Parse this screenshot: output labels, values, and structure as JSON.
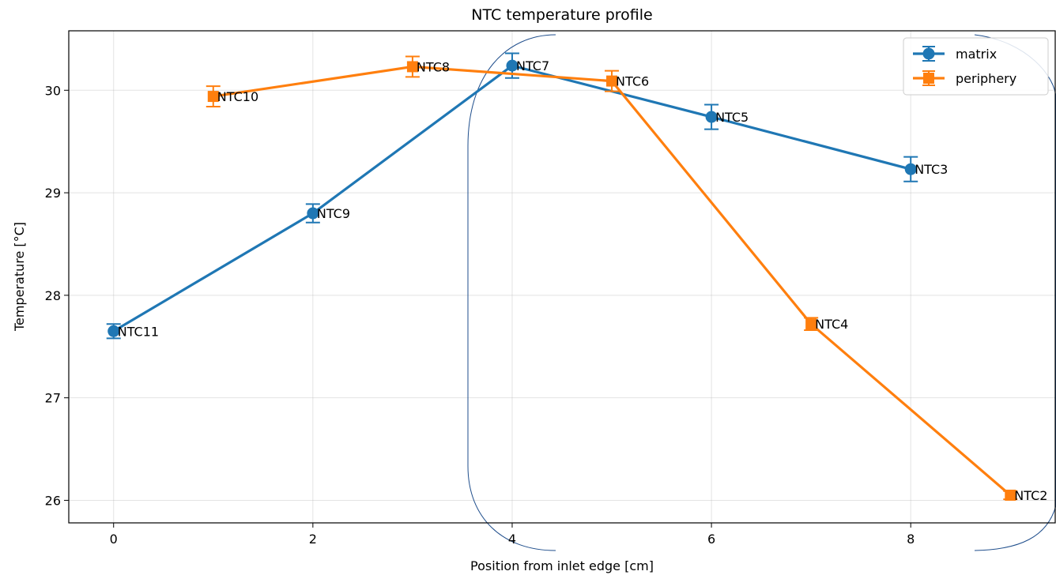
{
  "chart_data": {
    "type": "line",
    "title": "NTC temperature profile",
    "xlabel": "Position from inlet edge [cm]",
    "ylabel": "Temperature [°C]",
    "xlim": [
      -0.45,
      9.45
    ],
    "ylim": [
      25.78,
      30.58
    ],
    "xticks": [
      0,
      2,
      4,
      6,
      8
    ],
    "yticks": [
      26,
      27,
      28,
      29,
      30
    ],
    "grid": true,
    "legend_position": "top-right",
    "series": [
      {
        "name": "matrix",
        "color": "#1f77b4",
        "marker": "circle",
        "points": [
          {
            "x": 0,
            "y": 27.65,
            "err": 0.07,
            "label": "NTC11"
          },
          {
            "x": 2,
            "y": 28.8,
            "err": 0.09,
            "label": "NTC9"
          },
          {
            "x": 4,
            "y": 30.24,
            "err": 0.12,
            "label": "NTC7"
          },
          {
            "x": 6,
            "y": 29.74,
            "err": 0.12,
            "label": "NTC5"
          },
          {
            "x": 8,
            "y": 29.23,
            "err": 0.12,
            "label": "NTC3"
          }
        ]
      },
      {
        "name": "periphery",
        "color": "#ff7f0e",
        "marker": "square",
        "points": [
          {
            "x": 1,
            "y": 29.94,
            "err": 0.1,
            "label": "NTC10"
          },
          {
            "x": 3,
            "y": 30.23,
            "err": 0.1,
            "label": "NTC8"
          },
          {
            "x": 5,
            "y": 30.09,
            "err": 0.1,
            "label": "NTC6"
          },
          {
            "x": 7,
            "y": 27.72,
            "err": 0.06,
            "label": "NTC4"
          },
          {
            "x": 9,
            "y": 26.05,
            "err": 0.04,
            "label": "NTC2"
          }
        ]
      }
    ]
  }
}
